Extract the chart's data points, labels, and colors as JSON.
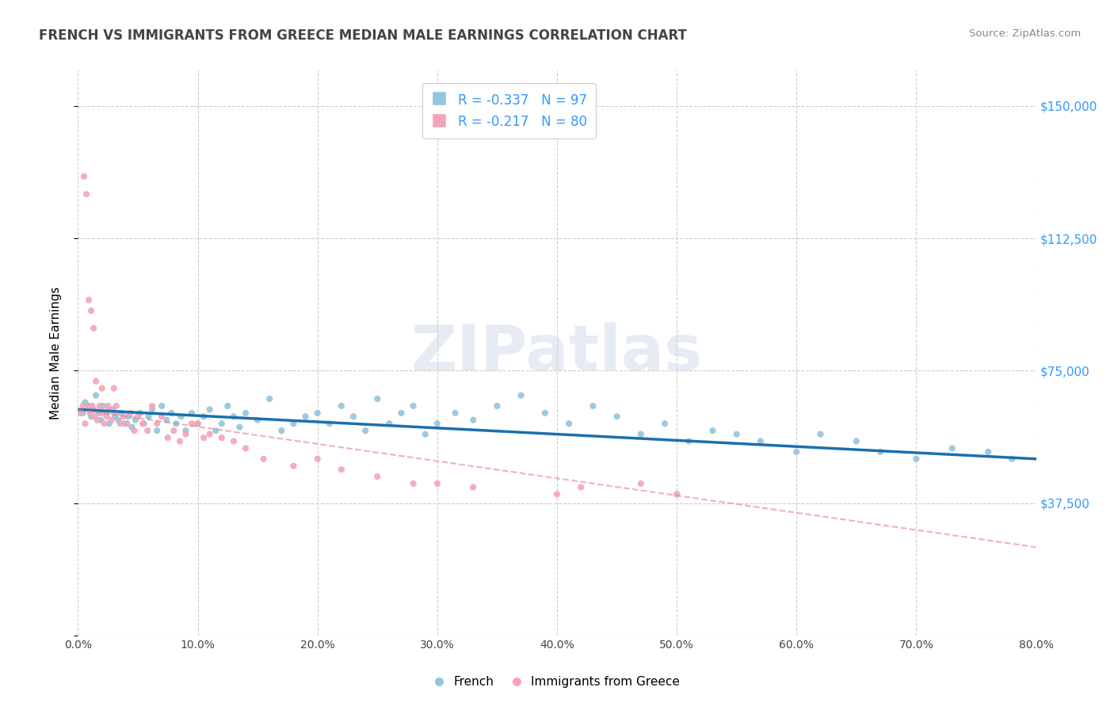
{
  "title": "FRENCH VS IMMIGRANTS FROM GREECE MEDIAN MALE EARNINGS CORRELATION CHART",
  "source_text": "Source: ZipAtlas.com",
  "ylabel": "Median Male Earnings",
  "y_ticks": [
    0,
    37500,
    75000,
    112500,
    150000
  ],
  "y_tick_labels": [
    "",
    "$37,500",
    "$75,000",
    "$112,500",
    "$150,000"
  ],
  "x_ticks": [
    0,
    10,
    20,
    30,
    40,
    50,
    60,
    70,
    80
  ],
  "x_tick_labels": [
    "0.0%",
    "10.0%",
    "20.0%",
    "30.0%",
    "40.0%",
    "50.0%",
    "60.0%",
    "70.0%",
    "80.0%"
  ],
  "xlim": [
    0.0,
    80.0
  ],
  "ylim": [
    0,
    160000
  ],
  "french_color": "#92c5de",
  "greece_color": "#f4a4b8",
  "french_line_color": "#1a6faf",
  "greece_line_color": "#e08090",
  "legend_label1": "R = -0.337   N = 97",
  "legend_label2": "R = -0.217   N = 80",
  "legend_color1": "#92c5de",
  "legend_color2": "#f4a4b8",
  "bottom_legend_french": "French",
  "bottom_legend_greece": "Immigrants from Greece",
  "watermark": "ZIPatlas",
  "watermark_color": "#d0d8e8",
  "title_color": "#444444",
  "source_color": "#888888",
  "tick_color": "#3399ff",
  "french_scatter_x": [
    0.4,
    0.6,
    0.9,
    1.1,
    1.3,
    1.5,
    1.7,
    1.9,
    2.1,
    2.4,
    2.6,
    2.9,
    3.1,
    3.4,
    3.6,
    3.9,
    4.2,
    4.5,
    4.8,
    5.2,
    5.5,
    5.9,
    6.2,
    6.6,
    7.0,
    7.4,
    7.8,
    8.2,
    8.6,
    9.0,
    9.5,
    10.0,
    10.5,
    11.0,
    11.5,
    12.0,
    12.5,
    13.0,
    13.5,
    14.0,
    15.0,
    16.0,
    17.0,
    18.0,
    19.0,
    20.0,
    21.0,
    22.0,
    23.0,
    24.0,
    25.0,
    26.0,
    27.0,
    28.0,
    29.0,
    30.0,
    31.5,
    33.0,
    35.0,
    37.0,
    39.0,
    41.0,
    43.0,
    45.0,
    47.0,
    49.0,
    51.0,
    53.0,
    55.0,
    57.0,
    60.0,
    62.0,
    65.0,
    67.0,
    70.0,
    73.0,
    76.0,
    78.0
  ],
  "french_scatter_y": [
    63000,
    66000,
    65000,
    62000,
    64000,
    68000,
    63000,
    61000,
    65000,
    63000,
    60000,
    64000,
    62000,
    61000,
    63000,
    60000,
    62000,
    59000,
    61000,
    63000,
    60000,
    62000,
    64000,
    58000,
    65000,
    61000,
    63000,
    60000,
    62000,
    58000,
    63000,
    60000,
    62000,
    64000,
    58000,
    60000,
    65000,
    62000,
    59000,
    63000,
    61000,
    67000,
    58000,
    60000,
    62000,
    63000,
    60000,
    65000,
    62000,
    58000,
    67000,
    60000,
    63000,
    65000,
    57000,
    60000,
    63000,
    61000,
    65000,
    68000,
    63000,
    60000,
    65000,
    62000,
    57000,
    60000,
    55000,
    58000,
    57000,
    55000,
    52000,
    57000,
    55000,
    52000,
    50000,
    53000,
    52000,
    50000
  ],
  "greece_scatter_x": [
    0.2,
    0.4,
    0.6,
    0.8,
    1.0,
    1.2,
    1.4,
    1.6,
    1.8,
    2.0,
    2.2,
    2.4,
    2.6,
    2.8,
    3.0,
    3.2,
    3.5,
    3.8,
    4.1,
    4.4,
    4.7,
    5.0,
    5.4,
    5.8,
    6.2,
    6.6,
    7.0,
    7.5,
    8.0,
    8.5,
    9.0,
    9.5,
    10.0,
    10.5,
    11.0,
    12.0,
    13.0,
    14.0,
    15.5,
    18.0,
    20.0,
    22.0,
    25.0,
    28.0,
    30.0,
    33.0,
    40.0,
    42.0,
    47.0,
    50.0
  ],
  "greece_scatter_y": [
    63000,
    65000,
    60000,
    65000,
    63000,
    65000,
    62000,
    61000,
    65000,
    63000,
    60000,
    62000,
    64000,
    61000,
    63000,
    65000,
    60000,
    62000,
    60000,
    63000,
    58000,
    62000,
    60000,
    58000,
    65000,
    60000,
    62000,
    56000,
    58000,
    55000,
    57000,
    60000,
    60000,
    56000,
    57000,
    56000,
    55000,
    53000,
    50000,
    48000,
    50000,
    47000,
    45000,
    43000,
    43000,
    42000,
    40000,
    42000,
    43000,
    40000
  ],
  "greece_high_x": [
    0.5,
    0.7,
    0.9,
    1.1,
    1.3,
    1.5,
    2.0,
    2.5,
    3.0
  ],
  "greece_high_y": [
    130000,
    125000,
    95000,
    92000,
    87000,
    72000,
    70000,
    65000,
    70000
  ]
}
